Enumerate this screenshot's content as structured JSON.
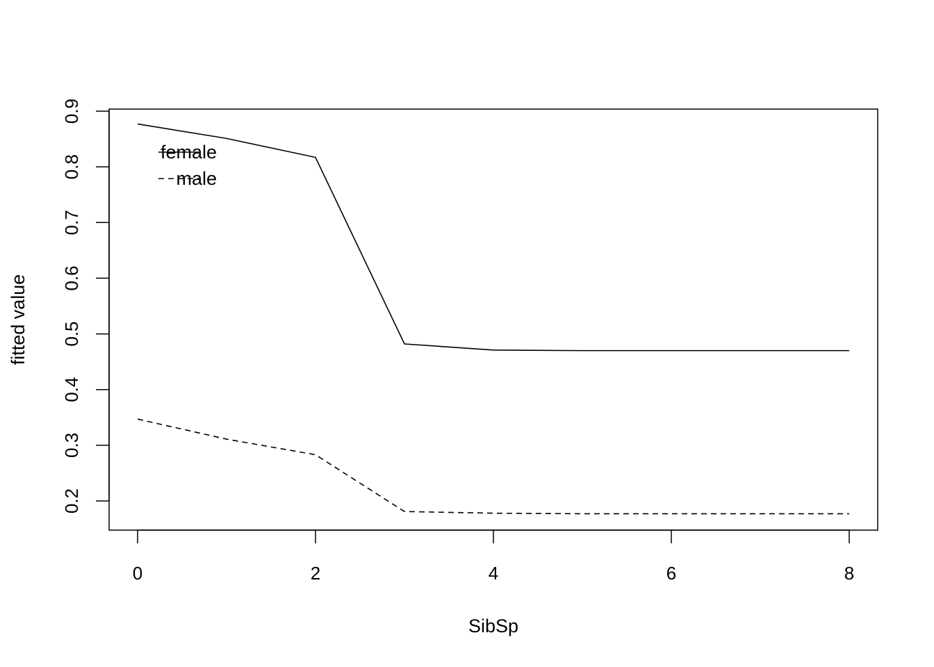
{
  "chart_data": {
    "type": "line",
    "title": "",
    "xlabel": "SibSp",
    "ylabel": "fitted value",
    "xlim": [
      0,
      8
    ],
    "ylim": [
      0.2,
      0.9
    ],
    "x_ticks": [
      0,
      2,
      4,
      6,
      8
    ],
    "y_ticks": [
      0.2,
      0.3,
      0.4,
      0.5,
      0.6,
      0.7,
      0.8,
      0.9
    ],
    "x_tick_labels": [
      "0",
      "2",
      "4",
      "6",
      "8"
    ],
    "y_tick_labels": [
      "0.2",
      "0.3",
      "0.4",
      "0.5",
      "0.6",
      "0.7",
      "0.8",
      "0.9"
    ],
    "grid": false,
    "legend": {
      "placement": "top-left",
      "entries": [
        {
          "label": "female",
          "line_style": "solid"
        },
        {
          "label": "male",
          "line_style": "dashed"
        }
      ]
    },
    "x": [
      0,
      1,
      2,
      3,
      4,
      5,
      6,
      7,
      8
    ],
    "series": [
      {
        "name": "female",
        "line_style": "solid",
        "color": "#000000",
        "values": [
          0.877,
          0.851,
          0.817,
          0.482,
          0.471,
          0.47,
          0.47,
          0.47,
          0.47
        ]
      },
      {
        "name": "male",
        "line_style": "dashed",
        "color": "#000000",
        "values": [
          0.347,
          0.311,
          0.283,
          0.181,
          0.178,
          0.177,
          0.177,
          0.177,
          0.177
        ]
      }
    ]
  }
}
